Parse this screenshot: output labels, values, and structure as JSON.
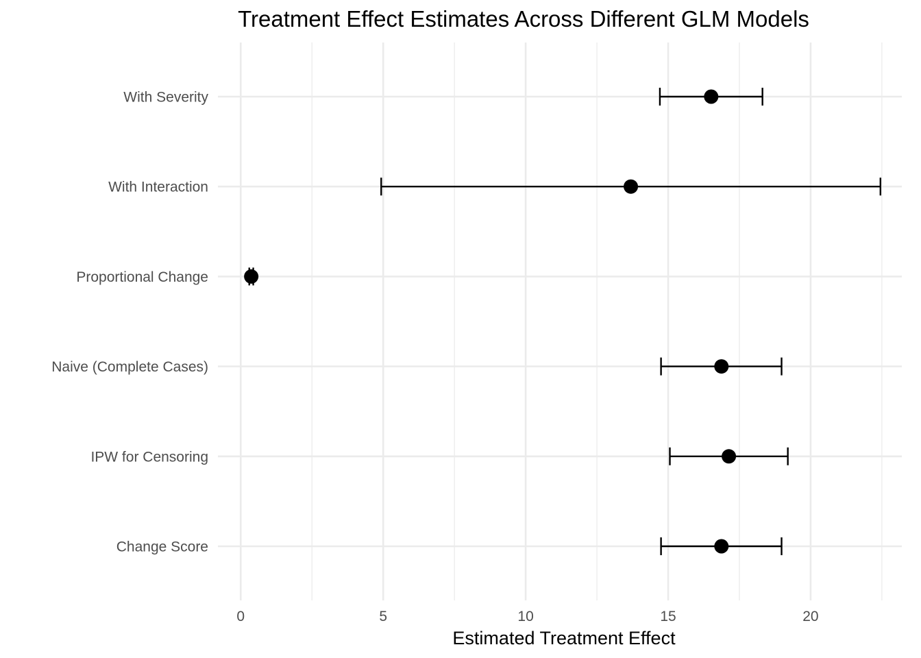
{
  "chart_data": {
    "type": "scatter",
    "title": "Treatment Effect Estimates Across Different GLM Models",
    "xlabel": "Estimated Treatment Effect",
    "ylabel": "",
    "xlim": [
      -0.8,
      23.2
    ],
    "x_ticks": [
      0,
      5,
      10,
      15,
      20
    ],
    "x_tick_labels": [
      "0",
      "5",
      "10",
      "15",
      "20"
    ],
    "x_minor_ticks": [
      2.5,
      7.5,
      12.5,
      17.5,
      22.5
    ],
    "grid": true,
    "legend": "none",
    "colors": {
      "point": "#000000",
      "errorbar": "#000000",
      "grid": "#ebebeb"
    },
    "categories": [
      "Change Score",
      "IPW for Censoring",
      "Naive (Complete Cases)",
      "Proportional Change",
      "With Interaction",
      "With Severity"
    ],
    "estimates": [
      {
        "model": "Change Score",
        "estimate": 16.87,
        "lower": 14.75,
        "upper": 18.98
      },
      {
        "model": "IPW for Censoring",
        "estimate": 17.13,
        "lower": 15.06,
        "upper": 19.2
      },
      {
        "model": "Naive (Complete Cases)",
        "estimate": 16.87,
        "lower": 14.75,
        "upper": 18.98
      },
      {
        "model": "Proportional Change",
        "estimate": 0.37,
        "lower": 0.3,
        "upper": 0.44
      },
      {
        "model": "With Interaction",
        "estimate": 13.69,
        "lower": 4.93,
        "upper": 22.45
      },
      {
        "model": "With Severity",
        "estimate": 16.51,
        "lower": 14.71,
        "upper": 18.31
      }
    ]
  }
}
